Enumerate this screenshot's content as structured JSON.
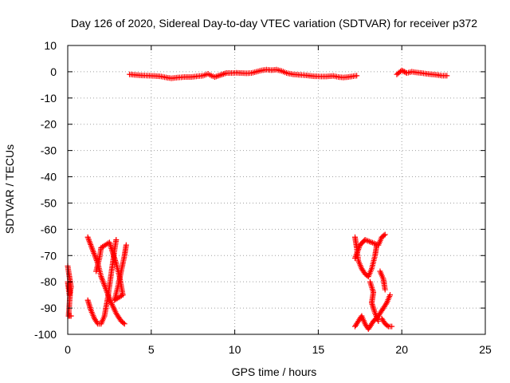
{
  "chart_data": {
    "type": "scatter",
    "title": "Day 126 of 2020, Sidereal Day-to-day VTEC variation (SDTVAR) for receiver p372",
    "xlabel": "GPS time / hours",
    "ylabel": "SDTVAR / TECUs",
    "xlim": [
      0,
      25
    ],
    "ylim": [
      -100,
      10
    ],
    "xticks": [
      0,
      5,
      10,
      15,
      20,
      25
    ],
    "yticks": [
      10,
      0,
      -10,
      -20,
      -30,
      -40,
      -50,
      -60,
      -70,
      -80,
      -90,
      -100
    ],
    "grid": true,
    "marker": "+",
    "color": "#ff0000",
    "series": [
      {
        "name": "near-zero track",
        "points": [
          [
            3.7,
            -1.0
          ],
          [
            4.0,
            -1.2
          ],
          [
            4.4,
            -1.4
          ],
          [
            4.8,
            -1.5
          ],
          [
            5.2,
            -1.6
          ],
          [
            5.6,
            -1.8
          ],
          [
            5.9,
            -2.2
          ],
          [
            6.2,
            -2.5
          ],
          [
            6.6,
            -2.2
          ],
          [
            7.0,
            -2.0
          ],
          [
            7.4,
            -2.0
          ],
          [
            7.8,
            -1.7
          ],
          [
            8.1,
            -1.5
          ],
          [
            8.4,
            -0.8
          ],
          [
            8.6,
            -1.5
          ],
          [
            8.8,
            -2.0
          ],
          [
            9.5,
            -0.5
          ],
          [
            9.8,
            -0.5
          ],
          [
            10.1,
            -0.4
          ],
          [
            10.4,
            -0.5
          ],
          [
            10.7,
            -0.6
          ],
          [
            11.0,
            -0.5
          ],
          [
            11.3,
            0.0
          ],
          [
            11.6,
            0.5
          ],
          [
            11.9,
            0.8
          ],
          [
            12.2,
            0.6
          ],
          [
            12.5,
            0.8
          ],
          [
            12.8,
            0.3
          ],
          [
            13.1,
            -0.5
          ],
          [
            13.5,
            -1.0
          ],
          [
            13.9,
            -1.2
          ],
          [
            14.3,
            -1.4
          ],
          [
            14.7,
            -1.7
          ],
          [
            15.1,
            -1.8
          ],
          [
            15.5,
            -1.8
          ],
          [
            15.9,
            -1.6
          ],
          [
            16.2,
            -2.0
          ],
          [
            16.5,
            -2.2
          ],
          [
            16.8,
            -2.0
          ],
          [
            17.0,
            -1.8
          ],
          [
            17.3,
            -1.5
          ],
          [
            19.7,
            -1.0
          ],
          [
            20.0,
            0.5
          ],
          [
            20.3,
            -0.5
          ],
          [
            20.6,
            0.0
          ],
          [
            20.9,
            -0.3
          ],
          [
            21.2,
            -0.5
          ],
          [
            21.5,
            -0.8
          ],
          [
            21.8,
            -1.0
          ],
          [
            22.1,
            -1.2
          ],
          [
            22.4,
            -1.5
          ],
          [
            22.7,
            -1.5
          ]
        ]
      },
      {
        "name": "early arcs",
        "points": [
          [
            0.0,
            -74
          ],
          [
            0.1,
            -78
          ],
          [
            0.2,
            -82
          ],
          [
            0.1,
            -85
          ],
          [
            0.0,
            -80
          ],
          [
            0.15,
            -84
          ],
          [
            0.05,
            -93
          ],
          [
            0.2,
            -93
          ],
          [
            1.2,
            -63
          ],
          [
            1.5,
            -68
          ],
          [
            1.8,
            -73
          ],
          [
            2.0,
            -78
          ],
          [
            2.3,
            -83
          ],
          [
            2.6,
            -88
          ],
          [
            2.9,
            -92
          ],
          [
            3.2,
            -95
          ],
          [
            3.4,
            -96
          ],
          [
            1.2,
            -87
          ],
          [
            1.4,
            -91
          ],
          [
            1.6,
            -94
          ],
          [
            1.8,
            -96
          ],
          [
            2.0,
            -96
          ],
          [
            2.2,
            -93
          ],
          [
            2.4,
            -86
          ],
          [
            2.6,
            -77
          ],
          [
            2.8,
            -68
          ],
          [
            2.9,
            -64
          ],
          [
            1.7,
            -76
          ],
          [
            1.9,
            -71
          ],
          [
            2.0,
            -67
          ],
          [
            2.5,
            -65
          ],
          [
            2.7,
            -69
          ],
          [
            2.9,
            -73
          ],
          [
            3.1,
            -78
          ],
          [
            3.3,
            -85
          ],
          [
            2.8,
            -87
          ],
          [
            3.0,
            -82
          ],
          [
            3.2,
            -76
          ],
          [
            3.4,
            -70
          ],
          [
            3.5,
            -66
          ]
        ]
      },
      {
        "name": "late arcs",
        "points": [
          [
            17.2,
            -63
          ],
          [
            17.3,
            -67
          ],
          [
            17.4,
            -72
          ],
          [
            17.6,
            -75
          ],
          [
            17.8,
            -77
          ],
          [
            18.0,
            -78
          ],
          [
            18.2,
            -75
          ],
          [
            18.4,
            -70
          ],
          [
            18.5,
            -66
          ],
          [
            17.2,
            -71
          ],
          [
            17.5,
            -66
          ],
          [
            17.8,
            -64
          ],
          [
            18.6,
            -66
          ],
          [
            18.8,
            -63
          ],
          [
            19.0,
            -62
          ],
          [
            18.1,
            -80
          ],
          [
            18.3,
            -84
          ],
          [
            18.2,
            -88
          ],
          [
            18.4,
            -92
          ],
          [
            18.6,
            -95
          ],
          [
            17.2,
            -97
          ],
          [
            17.4,
            -95
          ],
          [
            17.6,
            -93
          ],
          [
            17.8,
            -96
          ],
          [
            18.0,
            -98
          ],
          [
            18.3,
            -95
          ],
          [
            18.6,
            -93
          ],
          [
            18.9,
            -90
          ],
          [
            19.1,
            -88
          ],
          [
            19.3,
            -85
          ],
          [
            18.7,
            -76
          ],
          [
            18.9,
            -79
          ],
          [
            19.0,
            -83
          ],
          [
            18.8,
            -94
          ],
          [
            19.0,
            -96
          ],
          [
            19.2,
            -97
          ],
          [
            19.4,
            -97
          ]
        ]
      }
    ]
  }
}
